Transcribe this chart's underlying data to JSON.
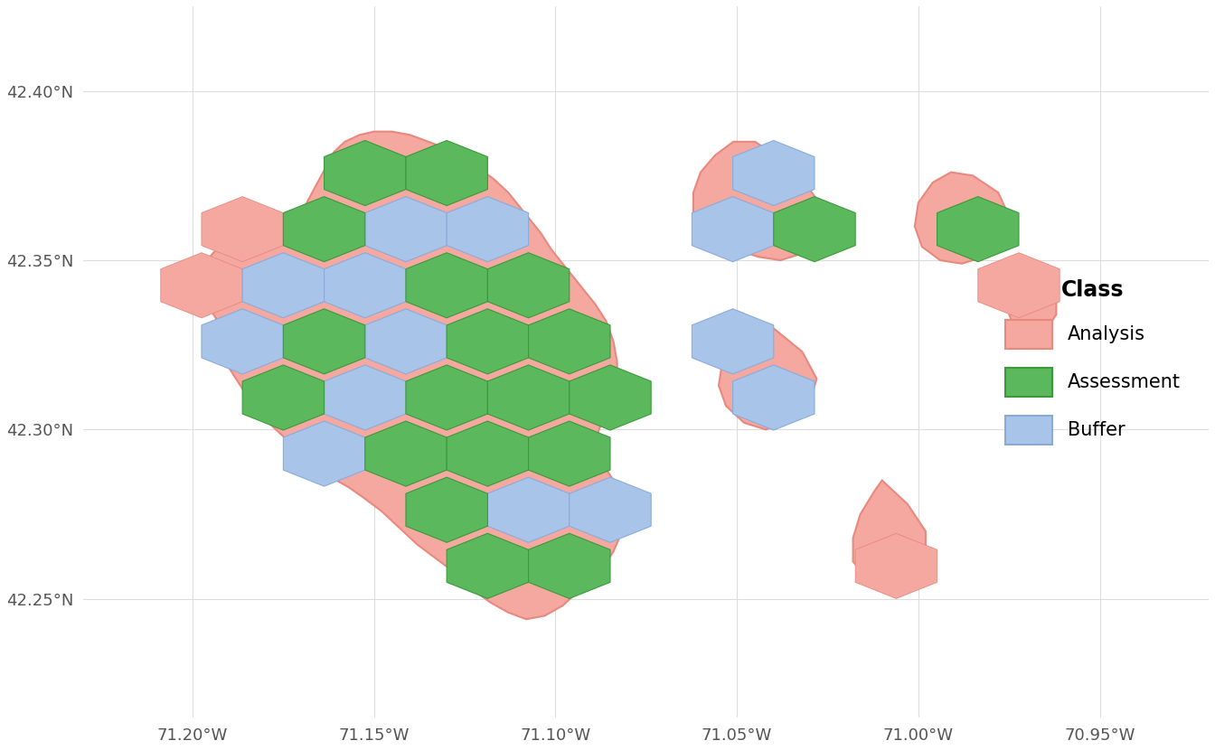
{
  "title": "",
  "xlabel_ticks": [
    "71.20°W",
    "71.15°W",
    "71.10°W",
    "71.05°W",
    "71.00°W",
    "70.95°W"
  ],
  "xlabel_vals": [
    -71.2,
    -71.15,
    -71.1,
    -71.05,
    -71.0,
    -70.95
  ],
  "ylabel_ticks": [
    "42.25°N",
    "42.30°N",
    "42.35°N",
    "42.40°N"
  ],
  "ylabel_vals": [
    42.25,
    42.3,
    42.35,
    42.4
  ],
  "xlim": [
    -71.23,
    -70.92
  ],
  "ylim": [
    42.215,
    42.425
  ],
  "color_analysis": "#F4A8A0",
  "color_assessment": "#5CB85C",
  "color_buffer": "#A8C4E8",
  "color_border_analysis": "#E8887E",
  "color_border_buffer": "#8AABDA",
  "color_border_assessment": "#3A9A3A",
  "background_color": "#FFFFFF",
  "grid_color": "#DDDDDD",
  "legend_title": "Class",
  "legend_labels": [
    "Analysis",
    "Assessment",
    "Buffer"
  ],
  "hex_size": 0.013,
  "figsize": [
    13.44,
    8.3
  ],
  "dpi": 100
}
